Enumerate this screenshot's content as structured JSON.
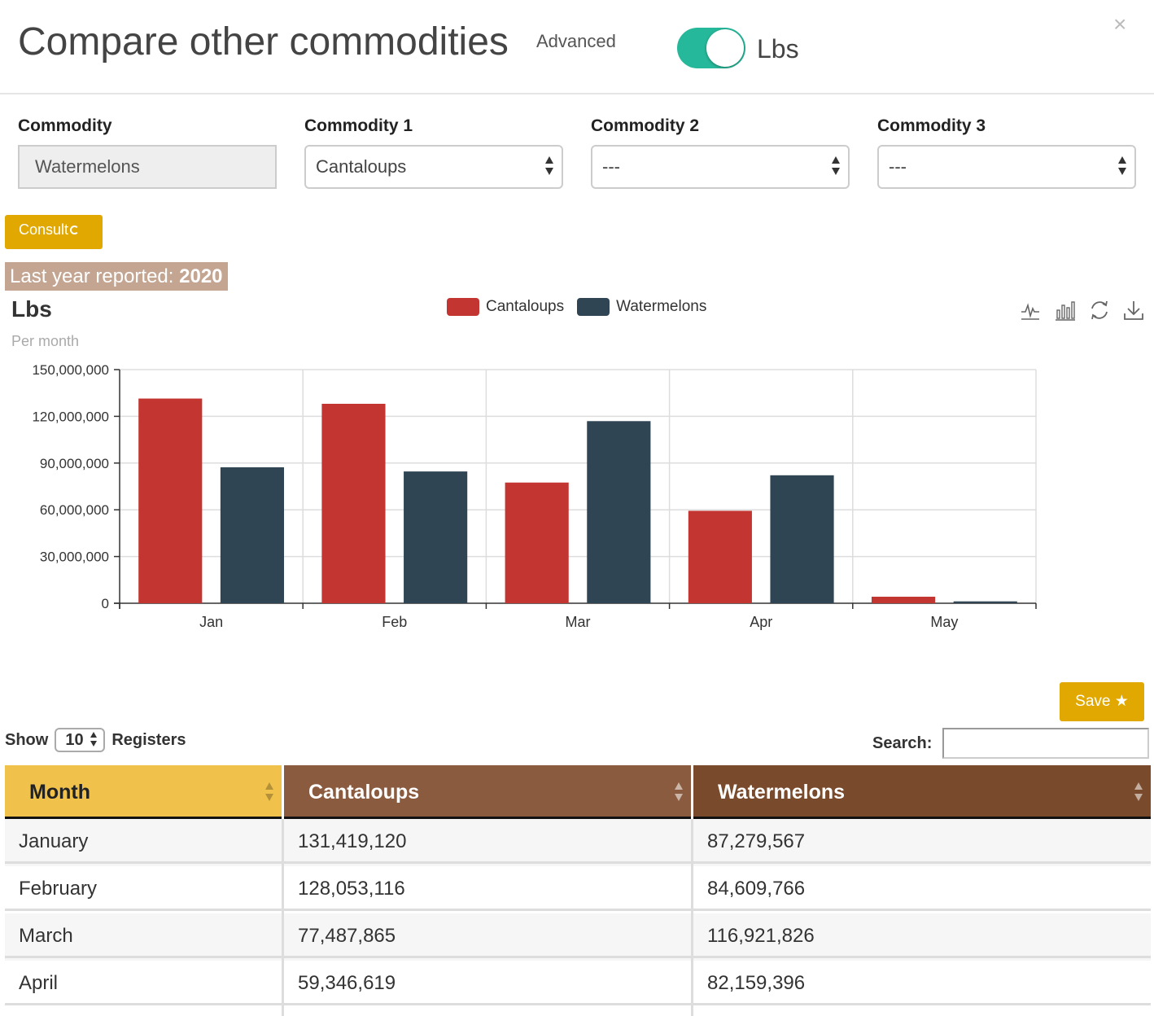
{
  "header": {
    "title": "Compare other commodities",
    "advanced_label": "Advanced",
    "unit_toggle_label": "Lbs",
    "close_glyph": "×"
  },
  "selectors": [
    {
      "label": "Commodity",
      "value": "Watermelons"
    },
    {
      "label": "Commodity 1",
      "value": "Cantaloups"
    },
    {
      "label": "Commodity 2",
      "value": "---"
    },
    {
      "label": "Commodity 3",
      "value": "---"
    }
  ],
  "consult_label": "Consult",
  "last_year": {
    "label": "Last year reported: ",
    "year": "2020"
  },
  "chart_data": {
    "type": "bar",
    "title": "Lbs",
    "subtitle": "Per month",
    "categories": [
      "Jan",
      "Feb",
      "Mar",
      "Apr",
      "May"
    ],
    "series": [
      {
        "name": "Cantaloups",
        "color": "#c23531",
        "values": [
          131419120,
          128053116,
          77487865,
          59346619,
          4200000
        ]
      },
      {
        "name": "Watermelons",
        "color": "#2f4554",
        "values": [
          87279567,
          84609766,
          116921826,
          82159396,
          1200000
        ]
      }
    ],
    "ylim": [
      0,
      150000000
    ],
    "yticks": [
      0,
      30000000,
      60000000,
      90000000,
      120000000,
      150000000
    ],
    "ytick_labels": [
      "0",
      "30,000,000",
      "60,000,000",
      "90,000,000",
      "120,000,000",
      "150,000,000"
    ],
    "grid": true,
    "legend_position": "top-center"
  },
  "toolbox": [
    "line-chart-icon",
    "bar-chart-icon",
    "refresh-icon",
    "download-icon"
  ],
  "save_label": "Save",
  "table": {
    "show_label": "Show",
    "page_length": "10",
    "registers_label": "Registers",
    "search_label": "Search:",
    "search_value": "",
    "headers": [
      "Month",
      "Cantaloups",
      "Watermelons"
    ],
    "header_colors": [
      "#f0c24b",
      "#8a5b3e",
      "#7a4a2c"
    ],
    "rows": [
      [
        "January",
        "131,419,120",
        "87,279,567"
      ],
      [
        "February",
        "128,053,116",
        "84,609,766"
      ],
      [
        "March",
        "77,487,865",
        "116,921,826"
      ],
      [
        "April",
        "59,346,619",
        "82,159,396"
      ]
    ]
  }
}
